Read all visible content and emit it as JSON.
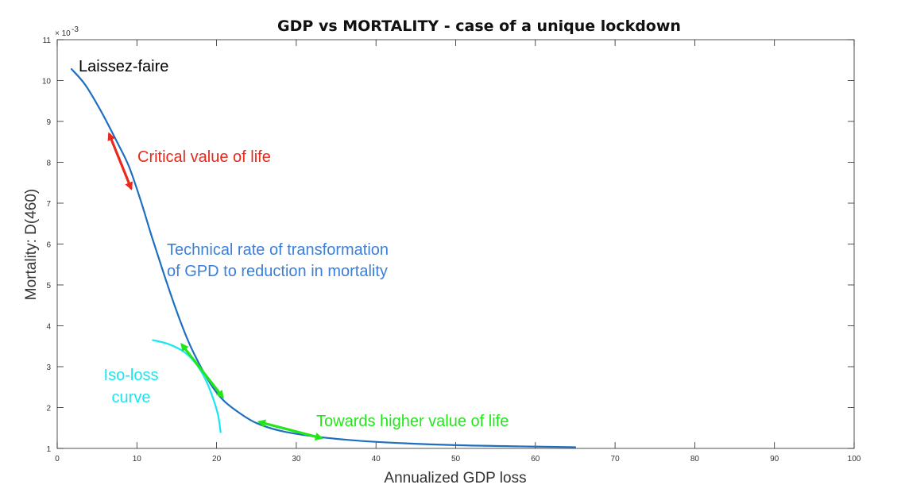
{
  "chart_data": {
    "type": "line",
    "title": "GDP vs MORTALITY - case of a unique lockdown",
    "xlabel": "Annualized GDP loss",
    "ylabel": "Mortality: D(460)",
    "y_multiplier_label": "× 10",
    "y_multiplier_exp": "-3",
    "xlim": [
      0,
      100
    ],
    "ylim": [
      1,
      11
    ],
    "xticks": [
      0,
      10,
      20,
      30,
      40,
      50,
      60,
      70,
      80,
      90,
      100
    ],
    "yticks": [
      1,
      2,
      3,
      4,
      5,
      6,
      7,
      8,
      9,
      10,
      11
    ],
    "grid": false,
    "series": [
      {
        "name": "Technical rate of transformation",
        "color": "#1f6fc0",
        "x": [
          1.8,
          3.5,
          5.5,
          7.5,
          9.0,
          10.5,
          12.0,
          13.5,
          15.0,
          16.5,
          18.0,
          19.5,
          21.0,
          23.0,
          25.0,
          28.0,
          32.0,
          37.0,
          42.0,
          50.0,
          58.0,
          65.0
        ],
        "y": [
          10.28,
          9.9,
          9.25,
          8.5,
          7.9,
          7.05,
          6.1,
          5.2,
          4.35,
          3.6,
          3.0,
          2.5,
          2.15,
          1.85,
          1.62,
          1.43,
          1.3,
          1.2,
          1.14,
          1.08,
          1.05,
          1.03
        ]
      },
      {
        "name": "Iso-loss curve",
        "color": "#19e6f0",
        "x": [
          12.0,
          14.0,
          16.0,
          17.5,
          18.7,
          19.6,
          20.2,
          20.5
        ],
        "y": [
          3.65,
          3.55,
          3.35,
          3.05,
          2.65,
          2.2,
          1.8,
          1.4
        ]
      }
    ],
    "annotations": [
      {
        "key": "laissez",
        "text": "Laissez-faire",
        "color": "#000000"
      },
      {
        "key": "critical",
        "text": "Critical value of life",
        "color": "#e8291c"
      },
      {
        "key": "trt1",
        "text": "Technical rate of transformation",
        "color": "#3b7fd9"
      },
      {
        "key": "trt2",
        "text": "of GPD to reduction in mortality",
        "color": "#3b7fd9"
      },
      {
        "key": "iso1",
        "text": "Iso-loss",
        "color": "#19e6f0"
      },
      {
        "key": "iso2",
        "text": "curve",
        "color": "#19e6f0"
      },
      {
        "key": "towards",
        "text": "Towards higher value of life",
        "color": "#22e61a"
      }
    ],
    "arrows": [
      {
        "name": "critical-value-arrow",
        "color": "#e8291c",
        "from": [
          6.5,
          8.7
        ],
        "to": [
          9.3,
          7.35
        ]
      },
      {
        "name": "tangent-arrow",
        "color": "#22e61a",
        "from": [
          15.6,
          3.55
        ],
        "to": [
          20.8,
          2.25
        ]
      },
      {
        "name": "towards-arrow",
        "color": "#22e61a",
        "from": [
          25.3,
          1.65
        ],
        "to": [
          33.2,
          1.25
        ]
      }
    ]
  }
}
